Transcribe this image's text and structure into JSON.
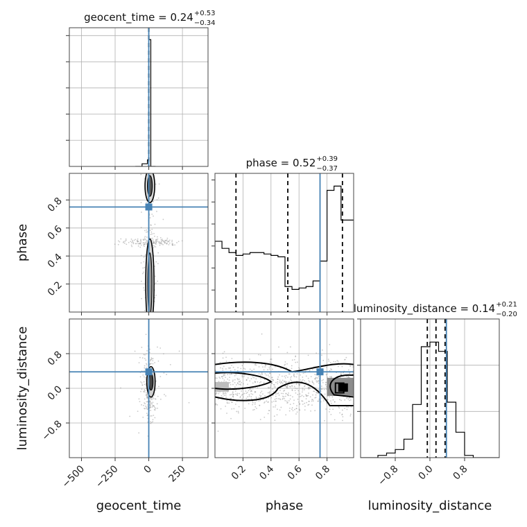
{
  "chart_data": {
    "type": "corner",
    "parameters": [
      "geocent_time",
      "phase",
      "luminosity_distance"
    ],
    "colors": {
      "truth": "#4682b4",
      "hist": "#000000",
      "grid": "#b0b0b0",
      "points": "#9a9a9a"
    },
    "geocent_time": {
      "title_main": "geocent_time = 0.24",
      "title_sup": "+0.53",
      "title_sub": "−0.34",
      "xlabel": "geocent_time",
      "xlim": [
        -590,
        440
      ],
      "ticks": [
        -500,
        -250,
        0,
        250
      ],
      "tick_labels": [
        "−500",
        "−250",
        "0",
        "250"
      ],
      "truth": 0.0,
      "hist_edges": [
        -100,
        -50,
        -10,
        0,
        15,
        50
      ],
      "hist_counts": [
        0.0,
        0.02,
        0.05,
        0.96,
        0.0
      ],
      "hist_max": 1.05,
      "quantiles": [
        -0.1,
        0.24,
        0.77
      ]
    },
    "phase": {
      "title_main": "phase = 0.52",
      "title_sup": "+0.39",
      "title_sub": "−0.37",
      "xlabel": "phase",
      "ylabel": "phase",
      "lim": [
        0.0,
        0.99
      ],
      "ticks": [
        0.2,
        0.4,
        0.6,
        0.8
      ],
      "tick_labels": [
        "0.2",
        "0.4",
        "0.6",
        "0.8"
      ],
      "truth": 0.75,
      "hist_edges": [
        0.0,
        0.05,
        0.1,
        0.15,
        0.2,
        0.25,
        0.3,
        0.35,
        0.4,
        0.45,
        0.5,
        0.55,
        0.6,
        0.65,
        0.7,
        0.75,
        0.8,
        0.85,
        0.9,
        0.95,
        1.0
      ],
      "hist_counts": [
        0.5,
        0.45,
        0.42,
        0.4,
        0.41,
        0.42,
        0.42,
        0.41,
        0.4,
        0.39,
        0.18,
        0.16,
        0.17,
        0.18,
        0.22,
        0.36,
        0.86,
        0.89,
        0.65,
        0.65
      ],
      "hist_max": 0.98,
      "quantiles": [
        0.15,
        0.52,
        0.91
      ]
    },
    "luminosity_distance": {
      "title_main": "luminosity_distance = 0.14",
      "title_sup": "+0.21",
      "title_sub": "−0.20",
      "xlabel": "luminosity_distance",
      "ylabel": "luminosity_distance",
      "lim": [
        -1.6,
        1.6
      ],
      "ticks": [
        -0.8,
        0.0,
        0.8
      ],
      "tick_labels": [
        "−0.8",
        "0.0",
        "0.8"
      ],
      "truth": 0.38,
      "hist_edges": [
        -1.6,
        -1.4,
        -1.2,
        -1.0,
        -0.8,
        -0.6,
        -0.4,
        -0.2,
        0.0,
        0.2,
        0.4,
        0.6,
        0.8,
        1.0,
        1.2,
        1.6
      ],
      "hist_counts": [
        0.0,
        0.0,
        0.02,
        0.04,
        0.07,
        0.16,
        0.46,
        0.96,
        1.0,
        0.92,
        0.48,
        0.22,
        0.02,
        0.0,
        0.0
      ],
      "hist_max": 1.2,
      "quantiles": [
        -0.06,
        0.14,
        0.35
      ]
    }
  }
}
